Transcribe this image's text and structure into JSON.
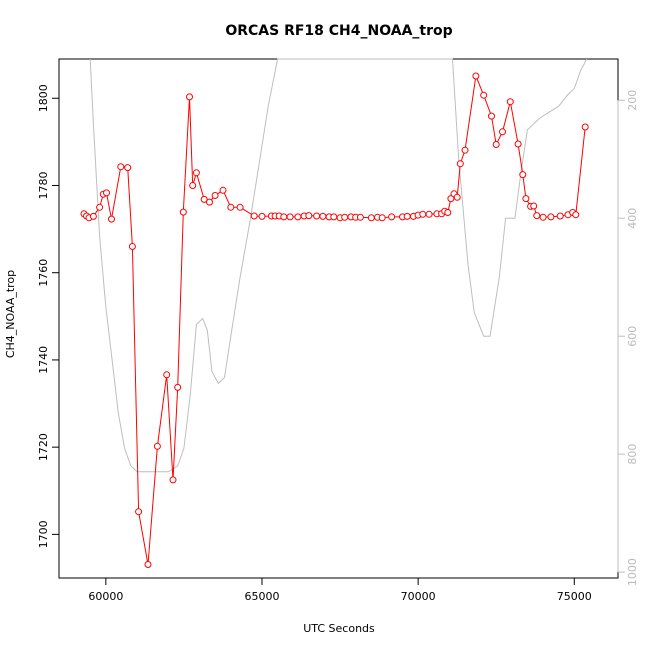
{
  "chart_data": {
    "type": "line",
    "title": "ORCAS RF18 CH4_NOAA_trop",
    "xlabel": "UTC Seconds",
    "ylabel": "CH4_NOAA_trop",
    "xlim": [
      58500,
      76400
    ],
    "ylim": [
      1690,
      1809
    ],
    "x_ticks": [
      60000,
      65000,
      70000,
      75000
    ],
    "y_ticks": [
      1700,
      1720,
      1740,
      1760,
      1780,
      1800
    ],
    "y2_ticks": [
      200,
      400,
      600,
      800,
      1000
    ],
    "y2lim_top_to_bottom": [
      130,
      1010
    ],
    "colors": {
      "series": "#ff0000",
      "secondary": "#bebebe"
    },
    "series": [
      {
        "x": [
          59300,
          59380,
          59460,
          59600,
          59800,
          59920,
          60020,
          60180,
          60480,
          60700,
          60850,
          61050,
          61350,
          61650,
          61950,
          62150,
          62300,
          62480,
          62680,
          62780,
          62900,
          63150,
          63320,
          63500,
          63750,
          64000,
          64300,
          64750,
          65000,
          65300,
          65420,
          65550,
          65700,
          65900,
          66150,
          66350,
          66500,
          66750,
          66950,
          67150,
          67300,
          67500,
          67650,
          67850,
          68000,
          68150,
          68500,
          68700,
          68850,
          69150,
          69500,
          69650,
          69850,
          70000,
          70150,
          70350,
          70600,
          70750,
          70850,
          70950,
          71050,
          71150,
          71250,
          71350,
          71500,
          71850,
          72100,
          72350,
          72500,
          72700,
          72950,
          73200,
          73350,
          73450,
          73600,
          73700,
          73800,
          74000,
          74250,
          74550,
          74800,
          74950,
          75050,
          75350
        ],
        "y": [
          1773.5,
          1773,
          1772.6,
          1772.9,
          1775,
          1778,
          1778.3,
          1772.3,
          1784.3,
          1784.1,
          1766,
          1705.2,
          1693.1,
          1720.2,
          1736.6,
          1712.5,
          1733.7,
          1773.9,
          1800.3,
          1780,
          1782.9,
          1776.8,
          1776.2,
          1777.7,
          1778.9,
          1775,
          1775,
          1773,
          1772.9,
          1773,
          1773,
          1773,
          1772.8,
          1772.8,
          1772.8,
          1773,
          1773.1,
          1773,
          1772.9,
          1772.8,
          1772.8,
          1772.6,
          1772.7,
          1772.8,
          1772.7,
          1772.7,
          1772.6,
          1772.7,
          1772.6,
          1772.8,
          1772.8,
          1772.9,
          1772.9,
          1773.2,
          1773.4,
          1773.4,
          1773.5,
          1773.5,
          1774.1,
          1773.8,
          1777,
          1778.1,
          1777.3,
          1785,
          1788.1,
          1805.1,
          1800.7,
          1795.9,
          1789.4,
          1792.3,
          1799.2,
          1789.5,
          1782.5,
          1777,
          1775.2,
          1775.3,
          1773.1,
          1772.7,
          1772.8,
          1773,
          1773.3,
          1773.8,
          1773.3,
          1793.4
        ]
      }
    ],
    "secondary_series": {
      "x": [
        59500,
        59600,
        59800,
        60000,
        60200,
        60400,
        60600,
        60800,
        61000,
        61300,
        61700,
        62000,
        62300,
        62500,
        62700,
        62900,
        63100,
        63250,
        63400,
        63600,
        63800,
        64000,
        64300,
        64600,
        64900,
        65200,
        65500,
        65600,
        65800,
        66000,
        66200,
        66500,
        66700,
        66900,
        67050,
        67300,
        67600,
        67800,
        68000,
        68200,
        68400,
        68700,
        69000,
        69300,
        69600,
        69900,
        70200,
        70500,
        70800,
        70950,
        71100,
        71300,
        71600,
        71800,
        72100,
        72300,
        72600,
        72800,
        73100,
        73300,
        73500,
        73700,
        73900,
        74200,
        74500,
        74800,
        75000,
        75200,
        75400
      ],
      "y": [
        130,
        240,
        430,
        550,
        640,
        730,
        790,
        820,
        830,
        830,
        830,
        830,
        820,
        790,
        700,
        580,
        570,
        590,
        660,
        680,
        670,
        600,
        500,
        410,
        310,
        210,
        130,
        130,
        130,
        130,
        130,
        130,
        130,
        130,
        130,
        130,
        130,
        130,
        130,
        130,
        130,
        130,
        130,
        130,
        130,
        130,
        130,
        130,
        130,
        130,
        130,
        300,
        480,
        560,
        600,
        600,
        500,
        400,
        400,
        320,
        250,
        240,
        230,
        220,
        210,
        190,
        180,
        150,
        130
      ]
    }
  }
}
